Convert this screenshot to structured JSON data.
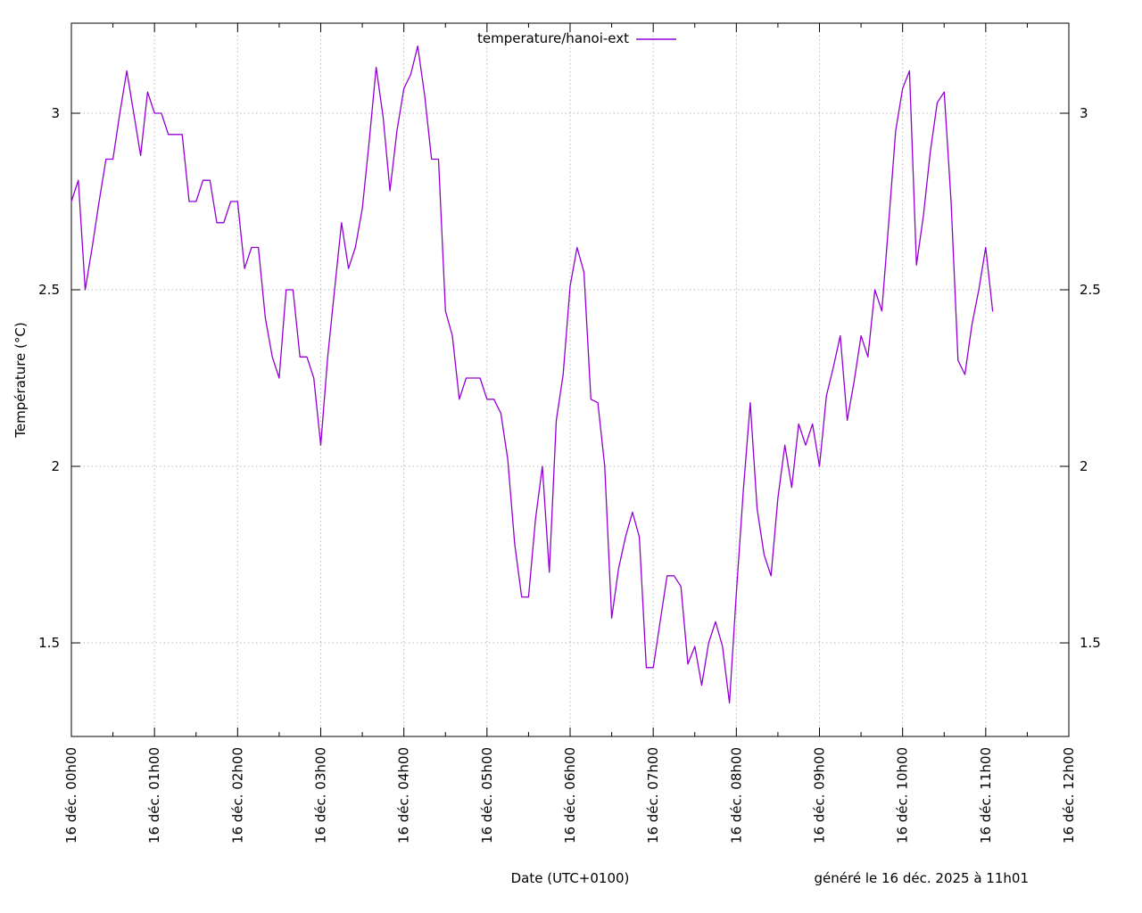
{
  "legend": {
    "label": "temperature/hanoi-ext"
  },
  "axes": {
    "y_title": "Température (°C)",
    "x_title": "Date (UTC+0100)"
  },
  "footer": {
    "generated": "généré le 16 déc. 2025 à 11h01"
  },
  "colors": {
    "line": "#9400d3",
    "grid": "#b9b9b9",
    "border": "#000000",
    "text": "#000000",
    "background": "#ffffff"
  },
  "chart_data": {
    "type": "line",
    "title": "",
    "series_name": "temperature/hanoi-ext",
    "xlabel": "Date (UTC+0100)",
    "ylabel": "Température (°C)",
    "legend_position": "top-center",
    "grid": true,
    "xlim_hours": [
      0,
      12
    ],
    "ylim": [
      1.235,
      3.255
    ],
    "y_ticks": [
      1.5,
      2,
      2.5,
      3
    ],
    "y_tick_labels": [
      "1.5",
      "2",
      "2.5",
      "3"
    ],
    "x_tick_labels": [
      "16 déc. 00h00",
      "16 déc. 01h00",
      "16 déc. 02h00",
      "16 déc. 03h00",
      "16 déc. 04h00",
      "16 déc. 05h00",
      "16 déc. 06h00",
      "16 déc. 07h00",
      "16 déc. 08h00",
      "16 déc. 09h00",
      "16 déc. 10h00",
      "16 déc. 11h00",
      "16 déc. 12h00"
    ],
    "x_minor_tick_every_hours": 0.5,
    "start_time_label": "16 déc. 00h00",
    "sample_interval_minutes": 5,
    "values": [
      2.75,
      2.81,
      2.5,
      2.62,
      2.75,
      2.87,
      2.87,
      3.0,
      3.12,
      3.0,
      2.88,
      3.06,
      3.0,
      3.0,
      2.94,
      2.94,
      2.94,
      2.75,
      2.75,
      2.81,
      2.81,
      2.69,
      2.69,
      2.75,
      2.75,
      2.56,
      2.62,
      2.62,
      2.42,
      2.31,
      2.25,
      2.5,
      2.5,
      2.31,
      2.31,
      2.25,
      2.06,
      2.31,
      2.5,
      2.69,
      2.56,
      2.62,
      2.73,
      2.92,
      3.13,
      2.99,
      2.78,
      2.95,
      3.07,
      3.11,
      3.19,
      3.05,
      2.87,
      2.87,
      2.44,
      2.37,
      2.19,
      2.25,
      2.25,
      2.25,
      2.19,
      2.19,
      2.15,
      2.02,
      1.78,
      1.63,
      1.63,
      1.85,
      2.0,
      1.7,
      2.13,
      2.26,
      2.51,
      2.62,
      2.55,
      2.19,
      2.18,
      2.0,
      1.57,
      1.71,
      1.8,
      1.87,
      1.8,
      1.43,
      1.43,
      1.56,
      1.69,
      1.69,
      1.66,
      1.44,
      1.49,
      1.38,
      1.5,
      1.56,
      1.49,
      1.33,
      1.64,
      1.93,
      2.18,
      1.88,
      1.75,
      1.69,
      1.91,
      2.06,
      1.94,
      2.12,
      2.06,
      2.12,
      2.0,
      2.2,
      2.28,
      2.37,
      2.13,
      2.24,
      2.37,
      2.31,
      2.5,
      2.44,
      2.69,
      2.95,
      3.07,
      3.12,
      2.57,
      2.71,
      2.89,
      3.03,
      3.06,
      2.75,
      2.3,
      2.26,
      2.4,
      2.5,
      2.62,
      2.44
    ]
  }
}
